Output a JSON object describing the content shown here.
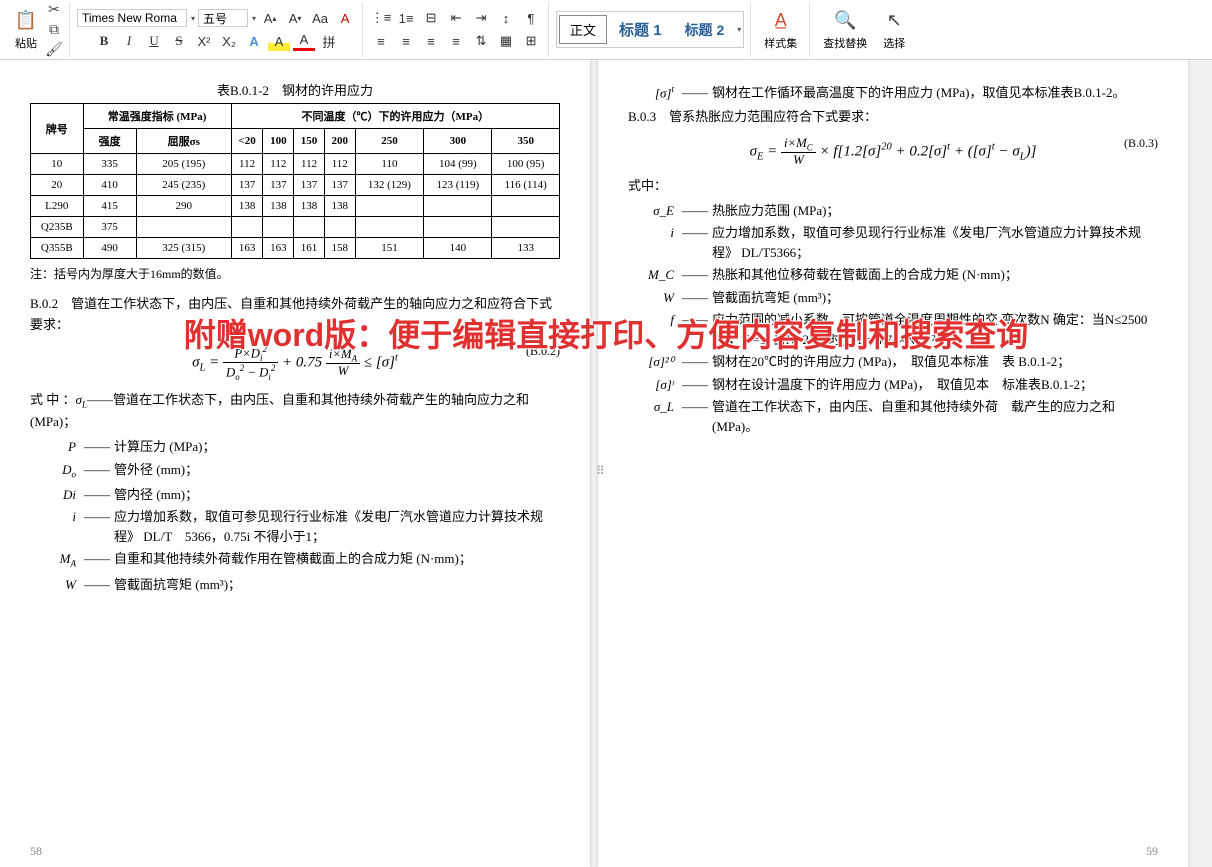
{
  "ribbon": {
    "paste_label": "粘贴",
    "font_name": "Times New Roma",
    "font_size": "五号",
    "style_normal": "正文",
    "style_h1": "标题 1",
    "style_h2": "标题 2",
    "styles_label": "样式集",
    "find_label": "查找替换",
    "select_label": "选择"
  },
  "watermark": "附赠word版：便于编辑直接打印、方便内容复制和搜索查询",
  "left_page": {
    "table_title": "表B.0.1-2　钢材的许用应力",
    "th_grade": "牌号",
    "th_strength": "常温强度指标 (MPa)",
    "th_allow": "不同温度（℃）下的许用应力（MPa）",
    "th_str": "强度",
    "th_yield": "屈服σs",
    "temps": [
      "<20",
      "100",
      "150",
      "200",
      "250",
      "300",
      "350"
    ],
    "rows": [
      {
        "g": "10",
        "s": "335",
        "y": "205 (195)",
        "v": [
          "112",
          "112",
          "112",
          "112",
          "110",
          "104 (99)",
          "100 (95)"
        ]
      },
      {
        "g": "20",
        "s": "410",
        "y": "245 (235)",
        "v": [
          "137",
          "137",
          "137",
          "137",
          "132 (129)",
          "123 (119)",
          "116 (114)"
        ]
      },
      {
        "g": "L290",
        "s": "415",
        "y": "290",
        "v": [
          "138",
          "138",
          "138",
          "138",
          "",
          "",
          ""
        ]
      },
      {
        "g": "Q235B",
        "s": "375",
        "y": "",
        "v": [
          "",
          "",
          "",
          "",
          "",
          "",
          ""
        ]
      },
      {
        "g": "Q355B",
        "s": "490",
        "y": "325 (315)",
        "v": [
          "163",
          "163",
          "161",
          "158",
          "151",
          "140",
          "133"
        ]
      }
    ],
    "note": "注：括号内为厚度大于16mm的数值。",
    "b02_head": "B.0.2　管道在工作状态下，由内压、自重和其他持续外荷载产生的轴向应力之和应符合下式要求：",
    "formula_b02_tag": "(B.0.2)",
    "b02_where": "式 中 ：",
    "defs": [
      {
        "s": "σ_L",
        "t": "管道在工作状态下，由内压、自重和其他持续外荷载产生的轴向应力之和 (MPa)；",
        "inline": true
      },
      {
        "s": "P",
        "t": "计算压力 (MPa)；"
      },
      {
        "s": "D_o",
        "t": "管外径 (mm)；"
      },
      {
        "s": "Di",
        "t": "管内径 (mm)；"
      },
      {
        "s": "i",
        "t": "应力增加系数，取值可参见现行行业标准《发电厂汽水管道应力计算技术规程》 DL/T　5366，0.75i 不得小于1；"
      },
      {
        "s": "M_A",
        "t": "自重和其他持续外荷载作用在管横截面上的合成力矩 (N·mm)；"
      },
      {
        "s": "W",
        "t": "管截面抗弯矩 (mm³)；"
      }
    ],
    "pageno": "58"
  },
  "right_page": {
    "sigma_t_def": "钢材在工作循环最高温度下的许用应力 (MPa)，取值见本标准表B.0.1-2。",
    "b03_head": "B.0.3　管系热胀应力范围应符合下式要求：",
    "formula_b03_tag": "(B.0.3)",
    "b03_where": "式中：",
    "defs": [
      {
        "s": "σ_E",
        "t": "热胀应力范围 (MPa)；"
      },
      {
        "s": "i",
        "t": "应力增加系数，取值可参见现行行业标准《发电厂汽水管道应力计算技术规程》 DL/T5366；"
      },
      {
        "s": "M_C",
        "t": "热胀和其他位移荷载在管截面上的合成力矩 (N·mm)；"
      },
      {
        "s": "W",
        "t": "管截面抗弯矩 (mm³)；"
      },
      {
        "s": "f",
        "t": "应力范围的减小系数，可按管道全温度周期性的交 变次数N 确定：当N≤2500 时 ， f =1; 当N>2500时， f = 4.78×N⁻⁰·²；"
      },
      {
        "s": "[σ]²⁰",
        "t": "钢材在20℃时的许用应力 (MPa)，　取值见本标准　表 B.0.1-2；"
      },
      {
        "s": "[σ]ᵗ",
        "t": "钢材在设计温度下的许用应力 (MPa)，　取值见本　标准表B.0.1-2；"
      },
      {
        "s": "σ_L",
        "t": "管道在工作状态下，由内压、自重和其他持续外荷　载产生的应力之和 (MPa)。"
      }
    ],
    "pageno": "59"
  }
}
